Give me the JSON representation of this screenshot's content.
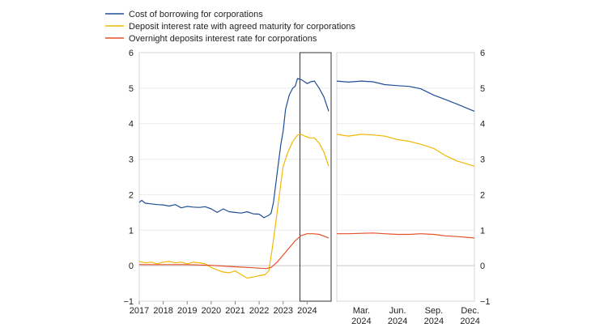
{
  "chart_data": {
    "type": "line",
    "legend": [
      {
        "name": "Cost of borrowing for corporations",
        "color": "#1f4e96"
      },
      {
        "name": "Deposit interest rate with agreed maturity for corporations",
        "color": "#f2b705"
      },
      {
        "name": "Overnight deposits interest rate for corporations",
        "color": "#e5502a"
      }
    ],
    "ylim": [
      -1,
      6
    ],
    "yticks": [
      "−1",
      "0",
      "1",
      "2",
      "3",
      "4",
      "5",
      "6"
    ],
    "left_panel": {
      "xlim": [
        2017,
        2025
      ],
      "xticks": [
        "2017",
        "2018",
        "2019",
        "2020",
        "2021",
        "2022",
        "2023",
        "2024"
      ],
      "highlight": [
        2023.7,
        2025
      ],
      "series": [
        {
          "name": "Cost of borrowing for corporations",
          "color": "#1f4e96",
          "x": [
            2017.0,
            2017.1,
            2017.25,
            2017.5,
            2017.75,
            2018.0,
            2018.25,
            2018.5,
            2018.75,
            2019.0,
            2019.25,
            2019.5,
            2019.75,
            2020.0,
            2020.25,
            2020.5,
            2020.75,
            2021.0,
            2021.25,
            2021.5,
            2021.75,
            2022.0,
            2022.2,
            2022.4,
            2022.5,
            2022.6,
            2022.75,
            2022.9,
            2023.0,
            2023.1,
            2023.25,
            2023.4,
            2023.5,
            2023.6,
            2023.75,
            2023.85,
            2024.0,
            2024.15,
            2024.3,
            2024.5,
            2024.7,
            2024.9
          ],
          "y": [
            1.78,
            1.84,
            1.76,
            1.74,
            1.72,
            1.71,
            1.68,
            1.72,
            1.63,
            1.67,
            1.65,
            1.64,
            1.66,
            1.6,
            1.5,
            1.6,
            1.52,
            1.5,
            1.48,
            1.52,
            1.46,
            1.45,
            1.35,
            1.42,
            1.48,
            1.8,
            2.6,
            3.4,
            3.8,
            4.4,
            4.8,
            5.0,
            5.05,
            5.27,
            5.24,
            5.2,
            5.13,
            5.18,
            5.2,
            5.0,
            4.75,
            4.35
          ]
        },
        {
          "name": "Deposit interest rate with agreed maturity for corporations",
          "color": "#f2b705",
          "x": [
            2017.0,
            2017.25,
            2017.5,
            2017.75,
            2018.0,
            2018.25,
            2018.5,
            2018.75,
            2019.0,
            2019.25,
            2019.5,
            2019.75,
            2020.0,
            2020.25,
            2020.5,
            2020.75,
            2021.0,
            2021.25,
            2021.5,
            2021.75,
            2022.0,
            2022.25,
            2022.4,
            2022.55,
            2022.75,
            2022.9,
            2023.0,
            2023.2,
            2023.4,
            2023.6,
            2023.75,
            2023.9,
            2024.1,
            2024.3,
            2024.5,
            2024.7,
            2024.9
          ],
          "y": [
            0.12,
            0.08,
            0.1,
            0.05,
            0.1,
            0.12,
            0.08,
            0.1,
            0.05,
            0.1,
            0.08,
            0.05,
            -0.05,
            -0.12,
            -0.18,
            -0.2,
            -0.15,
            -0.25,
            -0.35,
            -0.32,
            -0.28,
            -0.25,
            -0.15,
            0.5,
            1.5,
            2.3,
            2.8,
            3.2,
            3.5,
            3.68,
            3.7,
            3.65,
            3.6,
            3.6,
            3.45,
            3.2,
            2.8
          ]
        },
        {
          "name": "Overnight deposits interest rate for corporations",
          "color": "#e5502a",
          "x": [
            2017.0,
            2017.5,
            2018.0,
            2018.5,
            2019.0,
            2019.5,
            2020.0,
            2020.5,
            2021.0,
            2021.5,
            2022.0,
            2022.3,
            2022.5,
            2022.75,
            2023.0,
            2023.25,
            2023.5,
            2023.75,
            2024.0,
            2024.25,
            2024.5,
            2024.75,
            2024.9
          ],
          "y": [
            0.03,
            0.03,
            0.03,
            0.03,
            0.03,
            0.02,
            0.01,
            -0.01,
            -0.03,
            -0.05,
            -0.07,
            -0.08,
            -0.05,
            0.1,
            0.3,
            0.5,
            0.7,
            0.85,
            0.9,
            0.9,
            0.88,
            0.82,
            0.78
          ]
        }
      ]
    },
    "right_panel": {
      "xlim": [
        2024.0,
        2024.95
      ],
      "xticks": [
        {
          "line1": "Mar.",
          "line2": "2024",
          "x": 2024.17
        },
        {
          "line1": "Jun.",
          "line2": "2024",
          "x": 2024.42
        },
        {
          "line1": "Sep.",
          "line2": "2024",
          "x": 2024.67
        },
        {
          "line1": "Dec.",
          "line2": "2024",
          "x": 2024.92
        }
      ],
      "series": [
        {
          "name": "Cost of borrowing for corporations",
          "color": "#1f4e96",
          "x": [
            2024.0,
            2024.08,
            2024.17,
            2024.25,
            2024.33,
            2024.42,
            2024.5,
            2024.58,
            2024.67,
            2024.75,
            2024.83,
            2024.95
          ],
          "y": [
            5.2,
            5.17,
            5.2,
            5.18,
            5.1,
            5.07,
            5.05,
            4.98,
            4.8,
            4.68,
            4.55,
            4.35
          ]
        },
        {
          "name": "Deposit interest rate with agreed maturity for corporations",
          "color": "#f2b705",
          "x": [
            2024.0,
            2024.08,
            2024.17,
            2024.25,
            2024.33,
            2024.42,
            2024.5,
            2024.58,
            2024.67,
            2024.75,
            2024.83,
            2024.95
          ],
          "y": [
            3.7,
            3.65,
            3.7,
            3.68,
            3.65,
            3.55,
            3.5,
            3.42,
            3.3,
            3.1,
            2.95,
            2.8
          ]
        },
        {
          "name": "Overnight deposits interest rate for corporations",
          "color": "#e5502a",
          "x": [
            2024.0,
            2024.08,
            2024.17,
            2024.25,
            2024.33,
            2024.42,
            2024.5,
            2024.58,
            2024.67,
            2024.75,
            2024.83,
            2024.95
          ],
          "y": [
            0.9,
            0.9,
            0.91,
            0.92,
            0.9,
            0.88,
            0.88,
            0.9,
            0.88,
            0.84,
            0.82,
            0.78
          ]
        }
      ]
    }
  }
}
